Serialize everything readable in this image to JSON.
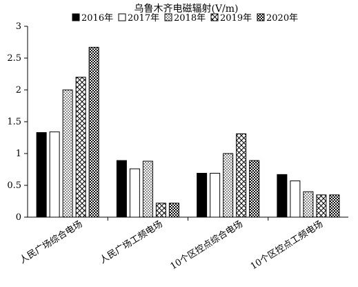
{
  "chart_data": {
    "type": "bar",
    "title": "乌鲁木齐电磁辐射(V/m)",
    "xlabel": "",
    "ylabel": "",
    "ylim": [
      0,
      3
    ],
    "yticks": [
      "0",
      "0.5",
      "1",
      "1.5",
      "2",
      "2.5",
      "3"
    ],
    "grid": false,
    "legend_position": "top",
    "categories": [
      "人民广场综合电场",
      "人民广场工频电场",
      "10个区控点综合电场",
      "10个区控点工频电场"
    ],
    "series": [
      {
        "name": "2016年",
        "values": [
          1.33,
          0.89,
          0.69,
          0.67
        ],
        "pattern": "solid-black"
      },
      {
        "name": "2017年",
        "values": [
          1.34,
          0.76,
          0.69,
          0.57
        ],
        "pattern": "white"
      },
      {
        "name": "2018年",
        "values": [
          2.0,
          0.88,
          1.0,
          0.4
        ],
        "pattern": "dots"
      },
      {
        "name": "2019年",
        "values": [
          2.2,
          0.22,
          1.31,
          0.35
        ],
        "pattern": "crosshatch"
      },
      {
        "name": "2020年",
        "values": [
          2.67,
          0.22,
          0.89,
          0.35
        ],
        "pattern": "dense-check"
      }
    ]
  }
}
